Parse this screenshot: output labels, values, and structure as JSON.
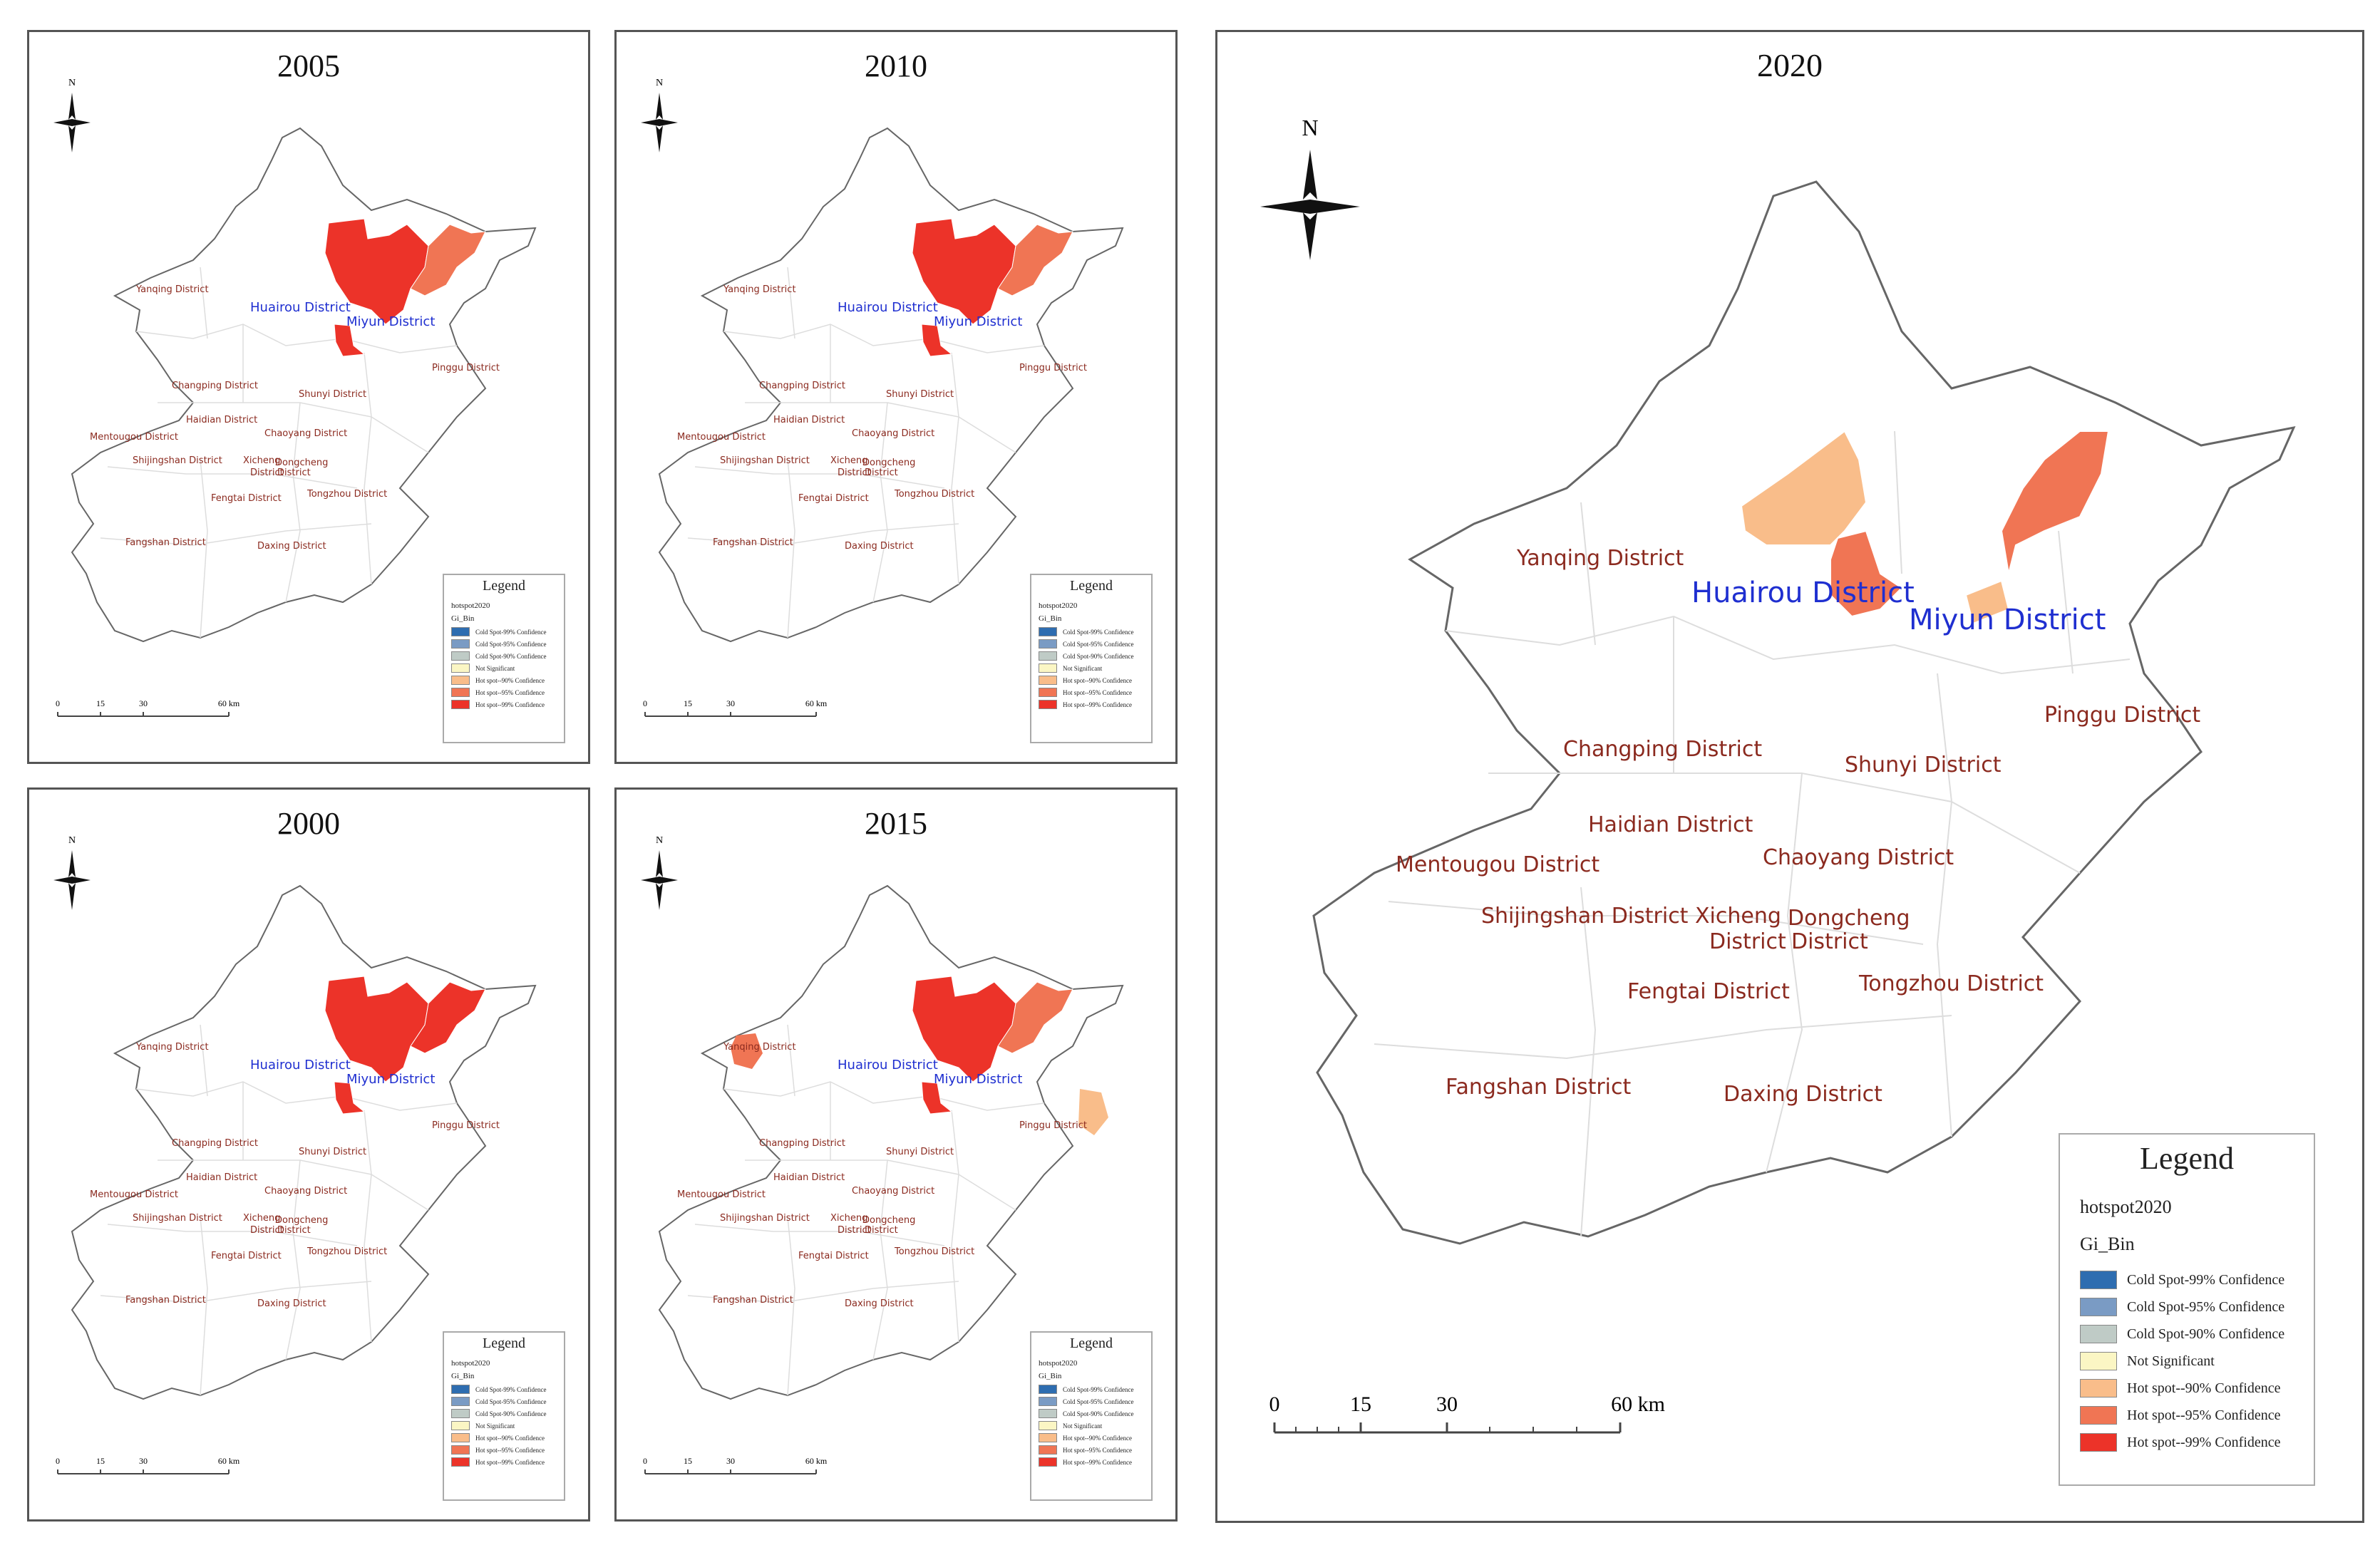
{
  "panels": [
    {
      "id": "p2005",
      "year": "2005"
    },
    {
      "id": "p2010",
      "year": "2010"
    },
    {
      "id": "p2000",
      "year": "2000"
    },
    {
      "id": "p2015",
      "year": "2015"
    },
    {
      "id": "p2020",
      "year": "2020"
    }
  ],
  "north_label": "N",
  "districts": {
    "yanqing": "Yanqing District",
    "huairou": "Huairou District",
    "miyun": "Miyun District",
    "pinggu": "Pinggu District",
    "changping": "Changping District",
    "shunyi": "Shunyi District",
    "haidian": "Haidian District",
    "mentougou": "Mentougou District",
    "chaoyang": "Chaoyang District",
    "shijingshan": "Shijingshan District",
    "xicheng": "Xicheng",
    "dongcheng": "Dongcheng",
    "district": "District",
    "fengtai": "Fengtai District",
    "tongzhou": "Tongzhou District",
    "fangshan": "Fangshan District",
    "daxing": "Daxing District"
  },
  "legend": {
    "title": "Legend",
    "layer": "hotspot2020",
    "field": "Gi_Bin",
    "items": [
      {
        "label": "Cold Spot-99% Confidence",
        "color": "#2e6db0"
      },
      {
        "label": "Cold Spot-95% Confidence",
        "color": "#7a9bc4"
      },
      {
        "label": "Cold Spot-90% Confidence",
        "color": "#bfcbc6"
      },
      {
        "label": "Not Significant",
        "color": "#fbf6c4"
      },
      {
        "label": "Hot spot--90% Confidence",
        "color": "#f9bd8a"
      },
      {
        "label": "Hot spot--95% Confidence",
        "color": "#f07554"
      },
      {
        "label": "Hot spot--99% Confidence",
        "color": "#ec3329"
      }
    ]
  },
  "scale_bar": {
    "ticks": [
      "0",
      "15",
      "30"
    ],
    "end_label": "60 km"
  },
  "hotspots": {
    "p2000": {
      "huairou_core": "#ec3329",
      "miyun_north": "#ec3329",
      "miyun_east": "#ec3329",
      "yanqing_west": "none",
      "pinggu_east": "none"
    },
    "p2005": {
      "huairou_core": "#ec3329",
      "miyun_north": "#ec3329",
      "miyun_east": "#f07554",
      "yanqing_west": "none",
      "pinggu_east": "none"
    },
    "p2010": {
      "huairou_core": "#ec3329",
      "miyun_north": "#ec3329",
      "miyun_east": "#f07554",
      "yanqing_west": "none",
      "pinggu_east": "none"
    },
    "p2015": {
      "huairou_core": "#ec3329",
      "miyun_north": "#ec3329",
      "miyun_east": "#f07554",
      "yanqing_west": "#f07554",
      "pinggu_east": "#f9bd8a"
    }
  }
}
